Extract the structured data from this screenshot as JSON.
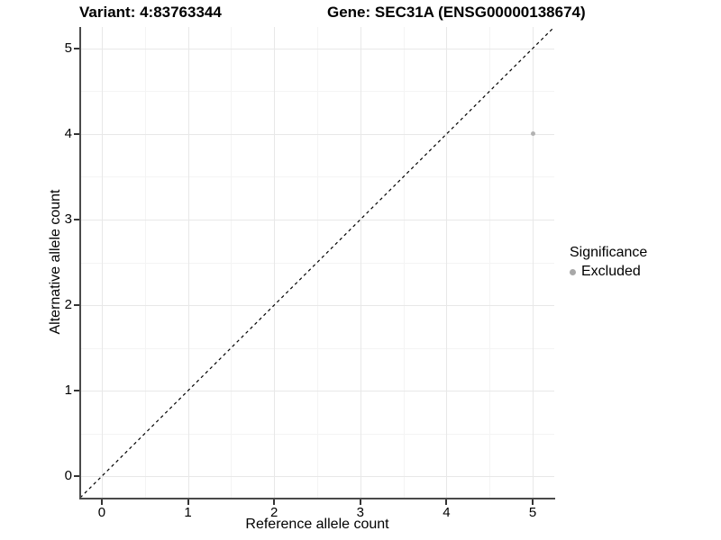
{
  "header": {
    "variant_title": "Variant: 4:83763344",
    "gene_title": "Gene: SEC31A (ENSG00000138674)"
  },
  "chart_data": {
    "type": "scatter",
    "title": "Variant: 4:83763344   Gene: SEC31A (ENSG00000138674)",
    "xlabel": "Reference allele count",
    "ylabel": "Alternative allele count",
    "xlim": [
      -0.25,
      5.25
    ],
    "ylim": [
      -0.25,
      5.25
    ],
    "xticks": [
      0,
      1,
      2,
      3,
      4,
      5
    ],
    "yticks": [
      0,
      1,
      2,
      3,
      4,
      5
    ],
    "grid": "major and minor, light gray on white",
    "points": [
      {
        "x": 5,
        "y": 4,
        "series": "Excluded"
      }
    ],
    "reference_line": {
      "equation": "y = x",
      "style": "dashed",
      "color": "#000000"
    },
    "legend": {
      "title": "Significance",
      "position": "right",
      "entries": [
        {
          "label": "Excluded",
          "color": "#a8a8a8"
        }
      ]
    }
  },
  "colors": {
    "point": "#b2b2b2",
    "legend_key": "#a8a8a8",
    "grid_major": "#e8e8e8",
    "grid_minor": "#f4f4f4",
    "axis_line": "#4a4a4a",
    "dashed_line": "#000000"
  }
}
